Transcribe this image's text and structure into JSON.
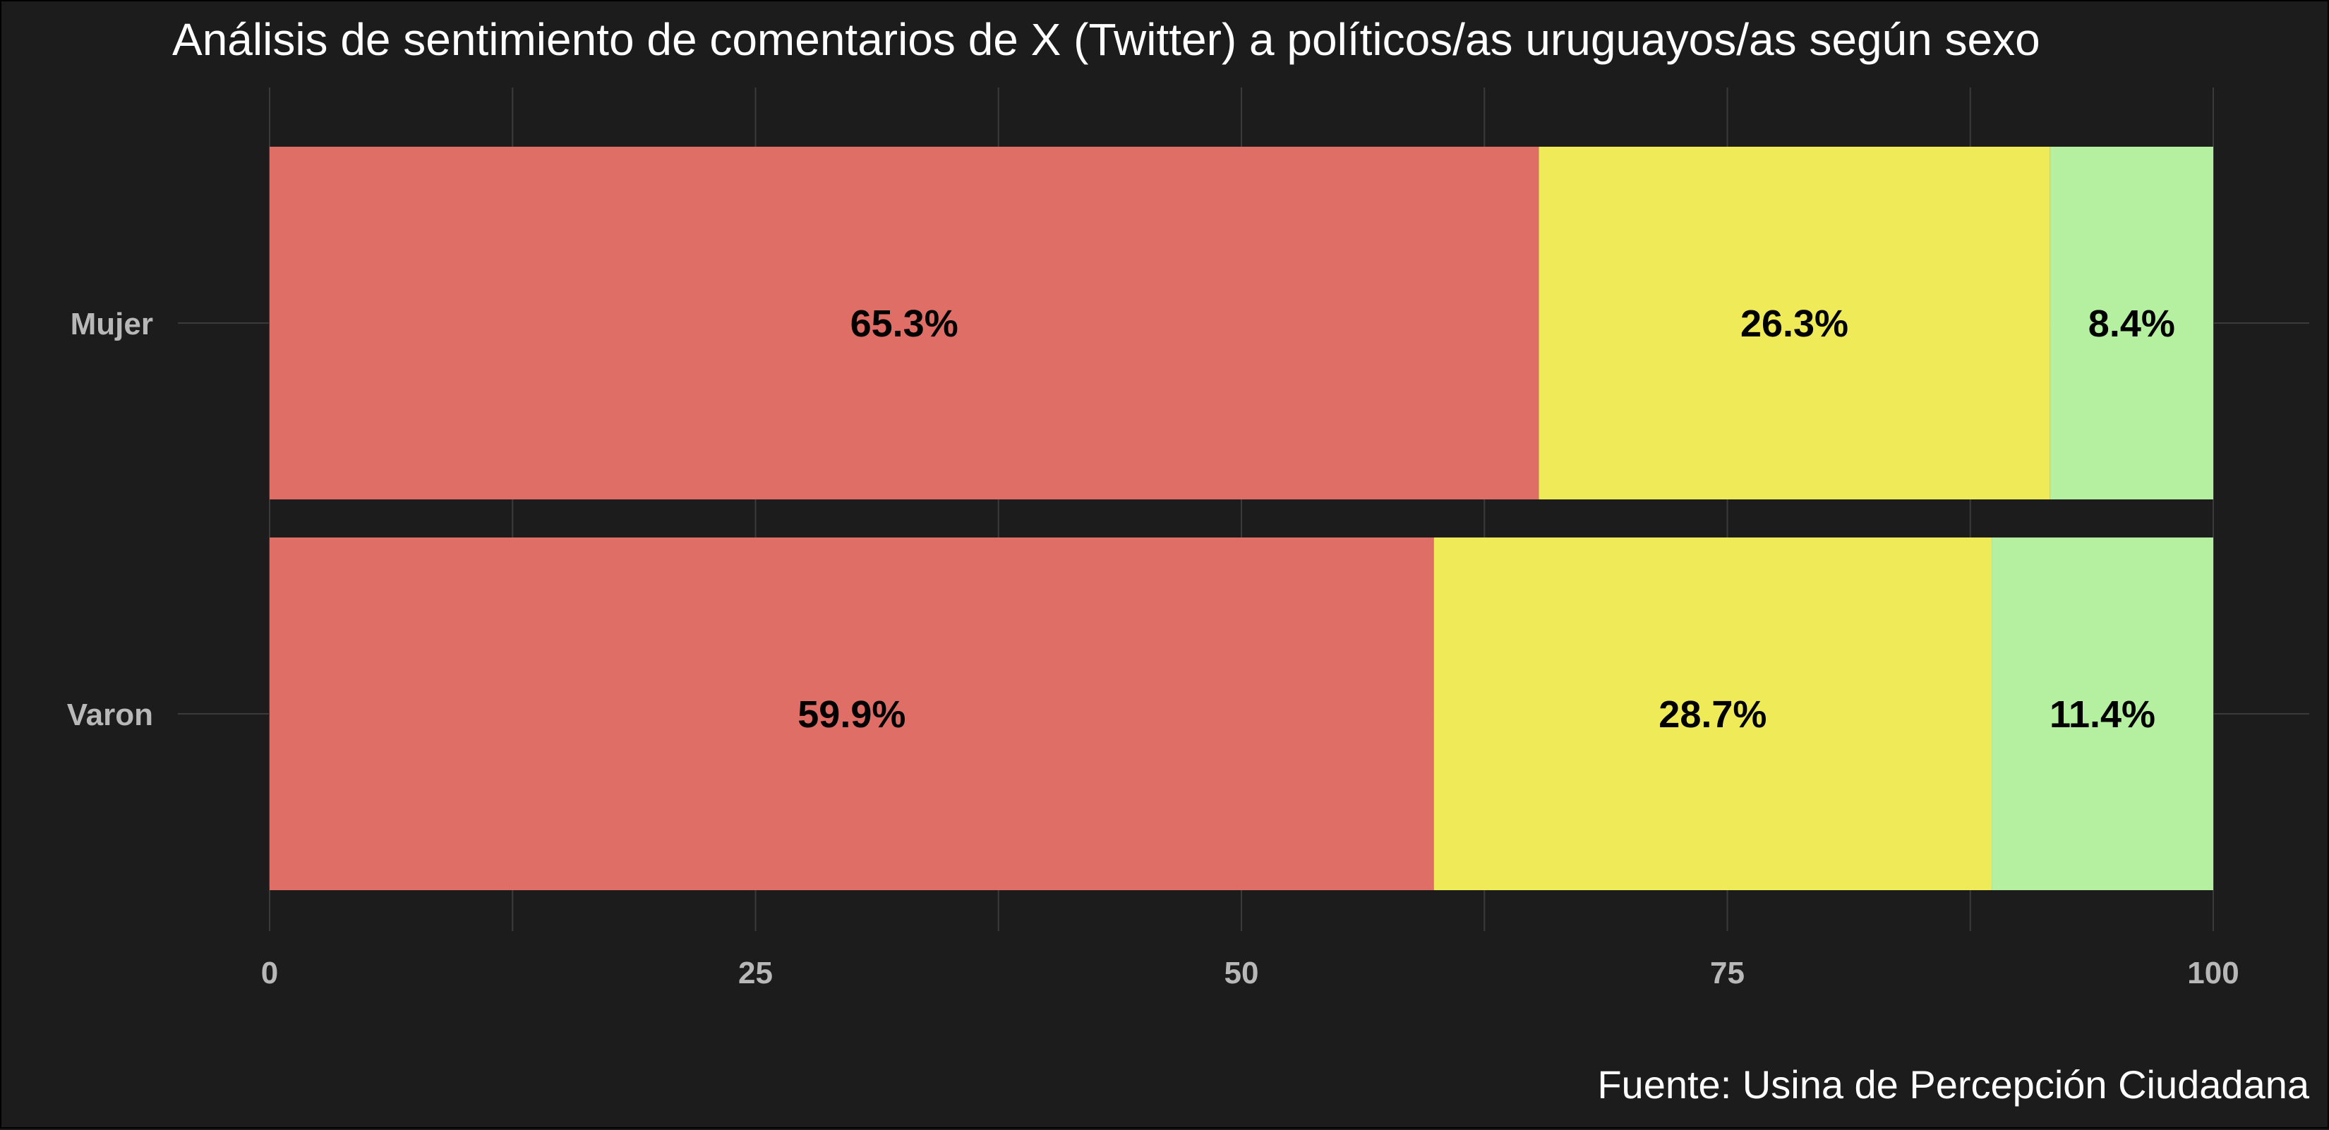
{
  "chart_data": {
    "type": "bar",
    "orientation": "horizontal",
    "stacked": true,
    "title": "Análisis de sentimiento de comentarios de X (Twitter) a políticos/as uruguayos/as según sexo",
    "caption": "Fuente: Usina de Percepción Ciudadana",
    "xlabel": "",
    "ylabel": "",
    "xlim": [
      0,
      100
    ],
    "x_ticks": [
      0,
      25,
      50,
      75,
      100
    ],
    "x_tick_labels": [
      "0",
      "25",
      "50",
      "75",
      "100"
    ],
    "grid": true,
    "legend": "none",
    "categories": [
      "Mujer",
      "Varon"
    ],
    "series": [
      {
        "color": "#df6e66",
        "values": [
          65.3,
          59.9
        ],
        "labels": [
          "65.3%",
          "59.9%"
        ]
      },
      {
        "color": "#eeea58",
        "values": [
          26.3,
          28.7
        ],
        "labels": [
          "26.3%",
          "28.7%"
        ]
      },
      {
        "color": "#b5efa0",
        "values": [
          8.4,
          11.4
        ],
        "labels": [
          "8.4%",
          "11.4%"
        ]
      }
    ]
  }
}
